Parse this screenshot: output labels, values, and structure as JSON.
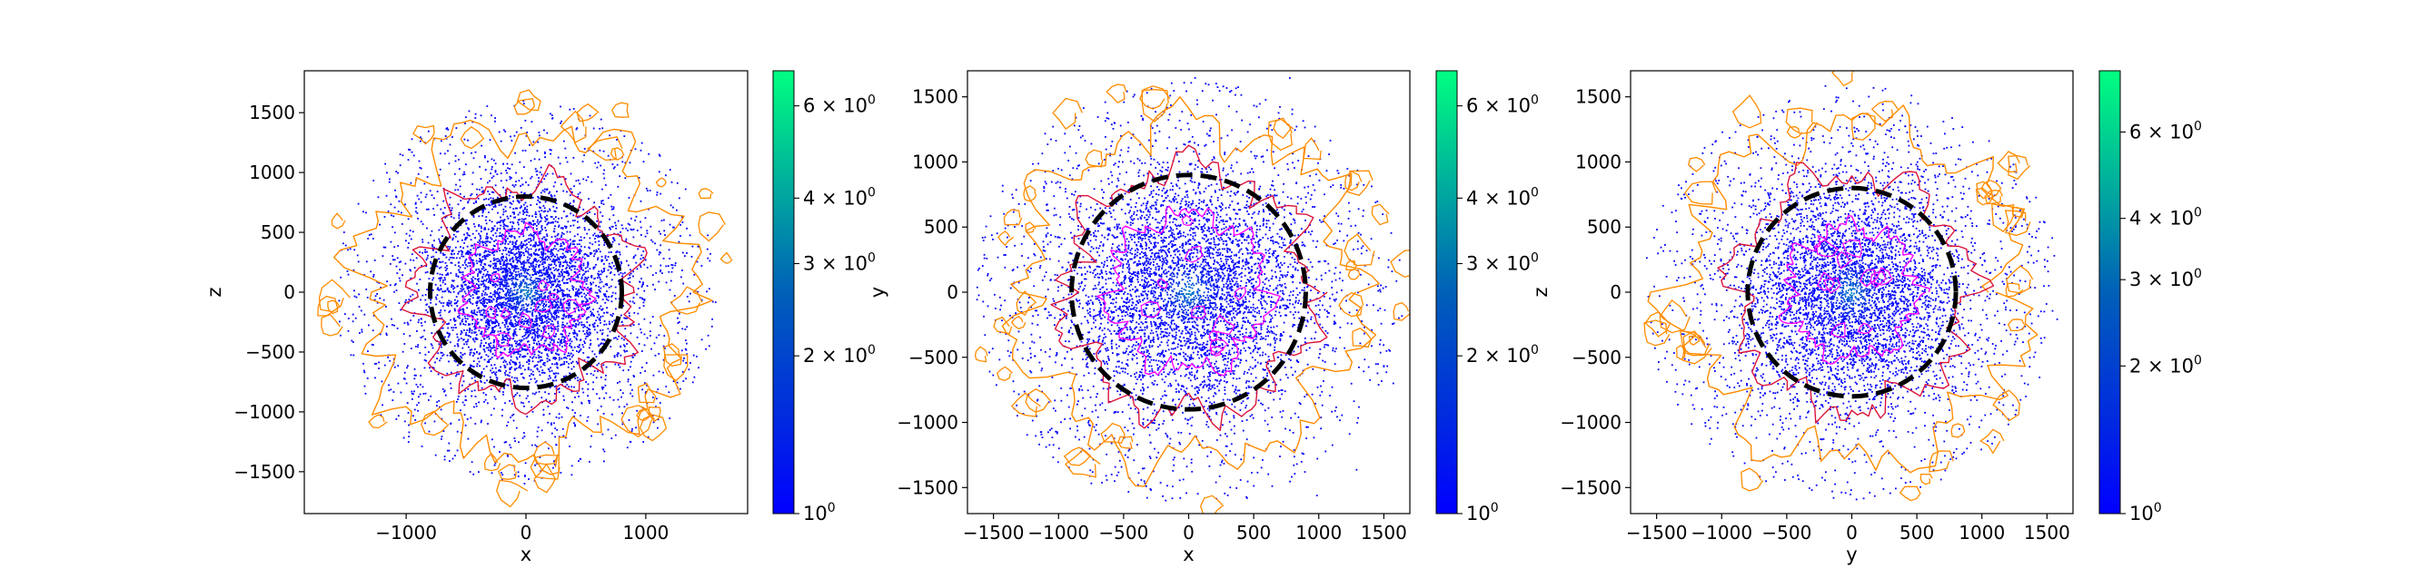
{
  "figure": {
    "panel_count": 3
  },
  "chart_data": [
    {
      "type": "scatter",
      "title": "",
      "xlabel": "x",
      "ylabel": "z",
      "xlim": [
        -1850,
        1850
      ],
      "ylim": [
        -1850,
        1850
      ],
      "xticks": [
        -1000,
        0,
        1000
      ],
      "yticks": [
        -1500,
        -1000,
        -500,
        0,
        500,
        1000,
        1500
      ],
      "xtick_labels": [
        "−1000",
        "0",
        "1000"
      ],
      "ytick_labels": [
        "−1500",
        "−1000",
        "−500",
        "0",
        "500",
        "1000",
        "1500"
      ],
      "grid": false,
      "circle": {
        "center": [
          0,
          0
        ],
        "radius": 800,
        "style": "dashed",
        "color": "#000000"
      },
      "contours": [
        {
          "level": "outer",
          "radius": 1350,
          "color": "#ff8c00"
        },
        {
          "level": "middle",
          "radius": 900,
          "color": "#dc143c"
        },
        {
          "level": "inner",
          "radius": 500,
          "color": "#ff00ff"
        }
      ],
      "point_cloud": {
        "sigma": 420,
        "halo_radius": 1600,
        "color_low": "#0000ff",
        "color_high": "#00ff80"
      },
      "colorbar": {
        "scale": "log",
        "range": [
          1,
          7
        ],
        "ticks": [
          {
            "value": 1,
            "mantissa": "10",
            "exponent": "0"
          },
          {
            "value": 2,
            "mantissa": "2 × 10",
            "exponent": "0"
          },
          {
            "value": 3,
            "mantissa": "3 × 10",
            "exponent": "0"
          },
          {
            "value": 4,
            "mantissa": "4 × 10",
            "exponent": "0"
          },
          {
            "value": 6,
            "mantissa": "6 × 10",
            "exponent": "0"
          }
        ]
      }
    },
    {
      "type": "scatter",
      "title": "",
      "xlabel": "x",
      "ylabel": "y",
      "xlim": [
        -1700,
        1700
      ],
      "ylim": [
        -1700,
        1700
      ],
      "xticks": [
        -1500,
        -1000,
        -500,
        0,
        500,
        1000,
        1500
      ],
      "yticks": [
        -1500,
        -1000,
        -500,
        0,
        500,
        1000,
        1500
      ],
      "xtick_labels": [
        "−1500",
        "−1000",
        "−500",
        "0",
        "500",
        "1000",
        "1500"
      ],
      "ytick_labels": [
        "−1500",
        "−1000",
        "−500",
        "0",
        "500",
        "1000",
        "1500"
      ],
      "grid": false,
      "circle": {
        "center": [
          0,
          0
        ],
        "radius": 900,
        "style": "dashed",
        "color": "#000000"
      },
      "contours": [
        {
          "level": "outer",
          "radius": 1300,
          "color": "#ff8c00"
        },
        {
          "level": "middle",
          "radius": 950,
          "color": "#dc143c"
        },
        {
          "level": "inner",
          "radius": 600,
          "color": "#ff00ff"
        }
      ],
      "point_cloud": {
        "sigma": 460,
        "halo_radius": 1650,
        "color_low": "#0000ff",
        "color_high": "#00ff80"
      },
      "colorbar": {
        "scale": "log",
        "range": [
          1,
          7
        ],
        "ticks": [
          {
            "value": 1,
            "mantissa": "10",
            "exponent": "0"
          },
          {
            "value": 2,
            "mantissa": "2 × 10",
            "exponent": "0"
          },
          {
            "value": 3,
            "mantissa": "3 × 10",
            "exponent": "0"
          },
          {
            "value": 4,
            "mantissa": "4 × 10",
            "exponent": "0"
          },
          {
            "value": 6,
            "mantissa": "6 × 10",
            "exponent": "0"
          }
        ]
      }
    },
    {
      "type": "scatter",
      "title": "",
      "xlabel": "y",
      "ylabel": "z",
      "xlim": [
        -1700,
        1700
      ],
      "ylim": [
        -1700,
        1700
      ],
      "xticks": [
        -1500,
        -1000,
        -500,
        0,
        500,
        1000,
        1500
      ],
      "yticks": [
        -1500,
        -1000,
        -500,
        0,
        500,
        1000,
        1500
      ],
      "xtick_labels": [
        "−1500",
        "−1000",
        "−500",
        "0",
        "500",
        "1000",
        "1500"
      ],
      "ytick_labels": [
        "−1500",
        "−1000",
        "−500",
        "0",
        "500",
        "1000",
        "1500"
      ],
      "grid": false,
      "circle": {
        "center": [
          0,
          0
        ],
        "radius": 800,
        "style": "dashed",
        "color": "#000000"
      },
      "contours": [
        {
          "level": "outer",
          "radius": 1300,
          "color": "#ff8c00"
        },
        {
          "level": "middle",
          "radius": 900,
          "color": "#dc143c"
        },
        {
          "level": "inner",
          "radius": 500,
          "color": "#ff00ff"
        }
      ],
      "point_cloud": {
        "sigma": 430,
        "halo_radius": 1600,
        "color_low": "#0000ff",
        "color_high": "#00ff80"
      },
      "colorbar": {
        "scale": "log",
        "range": [
          1,
          8
        ],
        "ticks": [
          {
            "value": 1,
            "mantissa": "10",
            "exponent": "0"
          },
          {
            "value": 2,
            "mantissa": "2 × 10",
            "exponent": "0"
          },
          {
            "value": 3,
            "mantissa": "3 × 10",
            "exponent": "0"
          },
          {
            "value": 4,
            "mantissa": "4 × 10",
            "exponent": "0"
          },
          {
            "value": 6,
            "mantissa": "6 × 10",
            "exponent": "0"
          }
        ]
      }
    }
  ]
}
